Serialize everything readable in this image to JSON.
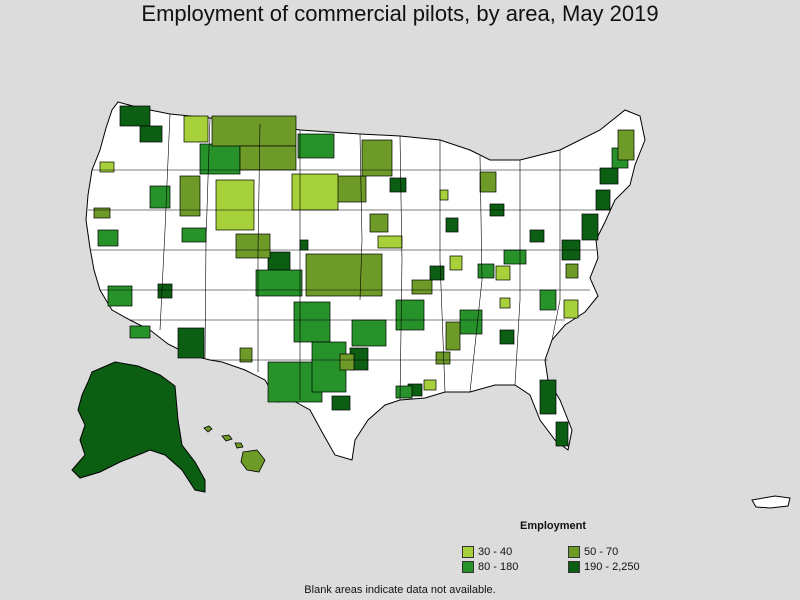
{
  "title": "Employment of commercial pilots, by area, May 2019",
  "legend": {
    "title": "Employment",
    "items": [
      {
        "label": "30 - 40",
        "color": "#a6d13a"
      },
      {
        "label": "50 - 70",
        "color": "#6e9a28"
      },
      {
        "label": "80 - 180",
        "color": "#27922a"
      },
      {
        "label": "190 - 2,250",
        "color": "#0b5e12"
      }
    ]
  },
  "note": "Blank areas indicate data not available.",
  "colors": {
    "background": "#dcdcdc",
    "land": "#ffffff",
    "border": "#000000"
  }
}
